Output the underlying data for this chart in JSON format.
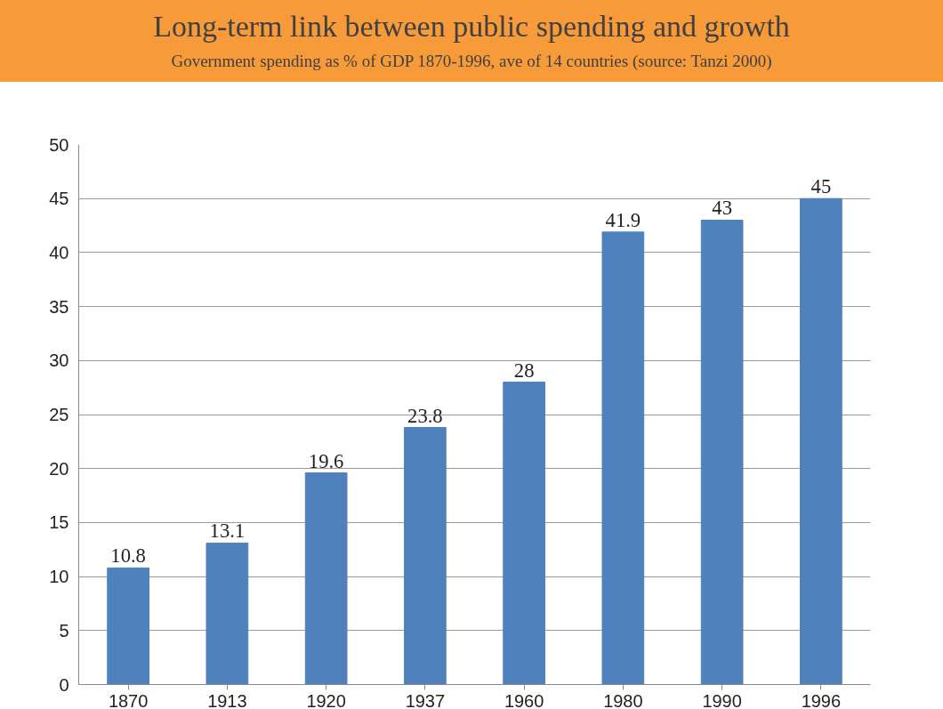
{
  "chart_data": {
    "type": "bar",
    "title": "Long-term link between public spending and growth",
    "subtitle": "Government spending as % of GDP 1870-1996, ave of 14 countries (source: Tanzi 2000)",
    "categories": [
      "1870",
      "1913",
      "1920",
      "1937",
      "1960",
      "1980",
      "1990",
      "1996"
    ],
    "values": [
      10.8,
      13.1,
      19.6,
      23.8,
      28,
      41.9,
      43,
      45
    ],
    "color": "#4f81bd",
    "data_labels": true,
    "ylim": [
      0,
      50
    ],
    "yticks": [
      0,
      5,
      10,
      15,
      20,
      25,
      30,
      35,
      40,
      45,
      50
    ],
    "grid": "y"
  }
}
